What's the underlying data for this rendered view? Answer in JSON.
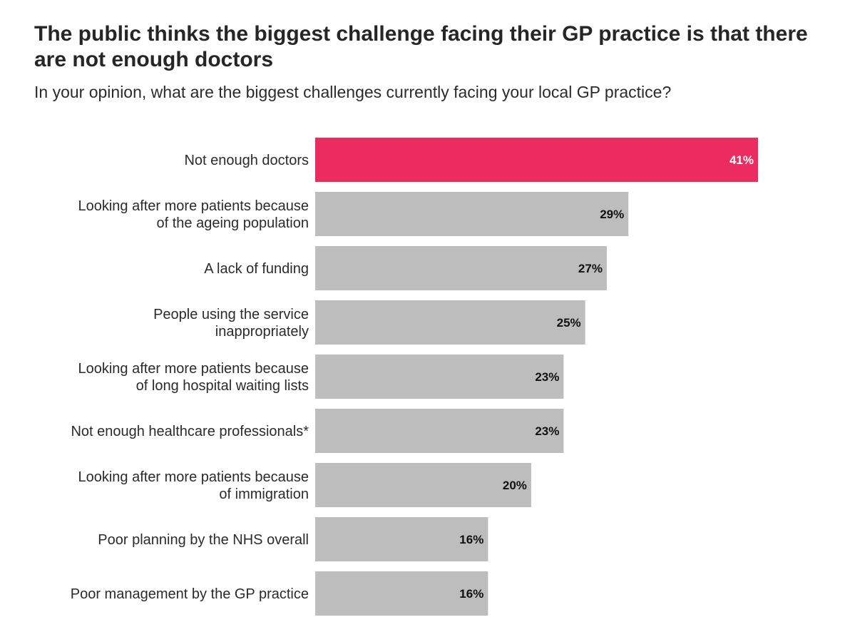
{
  "chart_data": {
    "type": "bar",
    "orientation": "horizontal",
    "title": "The public thinks the biggest challenge facing their GP practice is that there are not enough doctors",
    "subtitle": "In your opinion, what are the biggest challenges currently facing your local GP practice?",
    "xlabel": "",
    "ylabel": "",
    "xlim": [
      0,
      41
    ],
    "grid": false,
    "unit": "%",
    "categories": [
      [
        "Not enough doctors"
      ],
      [
        "Looking after more patients because",
        "of the ageing population"
      ],
      [
        "A lack of funding"
      ],
      [
        "People using the service",
        "inappropriately"
      ],
      [
        "Looking after more patients because",
        "of long hospital waiting lists"
      ],
      [
        "Not enough healthcare professionals*"
      ],
      [
        "Looking after more patients because",
        "of immigration"
      ],
      [
        "Poor planning by the NHS overall"
      ],
      [
        "Poor management by the GP practice"
      ]
    ],
    "values": [
      41,
      29,
      27,
      25,
      23,
      23,
      20,
      16,
      16
    ],
    "value_labels": [
      "41%",
      "29%",
      "27%",
      "25%",
      "23%",
      "23%",
      "20%",
      "16%",
      "16%"
    ],
    "highlight_index": 0
  },
  "colors": {
    "highlight_bar": "#ec2c60",
    "default_bar": "#bdbdbd",
    "highlight_label": "#ffffff",
    "default_label": "#111111"
  }
}
